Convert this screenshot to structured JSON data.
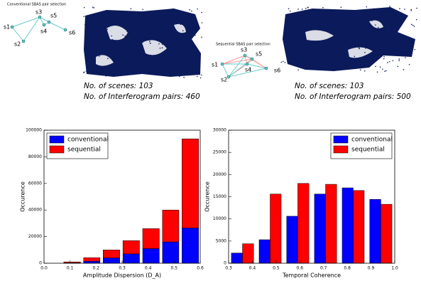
{
  "panels": [
    {
      "diagram_title": "Conventional SBAS pair selection",
      "nodes": [
        "s1",
        "s2",
        "s3",
        "s4",
        "s5",
        "s6"
      ],
      "scenes": "No. of scenes: 103",
      "pairs": "No. of Interferogram pairs:  460"
    },
    {
      "diagram_title": "Sequential SBAS pair selection",
      "nodes": [
        "s1",
        "s2",
        "s3",
        "s4",
        "s5",
        "s6"
      ],
      "scenes": "No. of scenes: 103",
      "pairs": "No. of Interferogram pairs: 500"
    }
  ],
  "chart_data": [
    {
      "type": "histogram",
      "stacked": true,
      "xlabel": "Amplitude Dispersion (D_A)",
      "ylabel": "Occurence",
      "bins": [
        0.07,
        0.146,
        0.221,
        0.297,
        0.373,
        0.449,
        0.524,
        0.6
      ],
      "series": [
        {
          "name": "conventional",
          "color": "#0000ff",
          "values": [
            300,
            1500,
            4000,
            7000,
            11000,
            16000,
            26500
          ]
        },
        {
          "name": "sequential",
          "color": "#ff0000",
          "values": [
            700,
            2700,
            6000,
            10000,
            15000,
            24000,
            67000
          ]
        }
      ],
      "xlim": [
        0,
        0.6
      ],
      "xticks": [
        {
          "value": 0,
          "label": "0.0"
        },
        0.1,
        0.2,
        0.3,
        0.4,
        0.5,
        0.6
      ],
      "ylim": [
        0,
        100000
      ],
      "yticks": [
        0,
        20000,
        40000,
        60000,
        80000,
        100000
      ],
      "legend": "upper left"
    },
    {
      "type": "histogram",
      "stacked": false,
      "xlabel": "Temporal Coherence",
      "ylabel": "Occurence",
      "bins": [
        0.3,
        0.417,
        0.533,
        0.65,
        0.767,
        0.883,
        1.0
      ],
      "series": [
        {
          "name": "conventional",
          "color": "#0000ff",
          "values": [
            2300,
            5300,
            10600,
            15600,
            17000,
            14400
          ]
        },
        {
          "name": "sequential",
          "color": "#ff0000",
          "values": [
            4400,
            15600,
            18000,
            17800,
            16400,
            13300
          ]
        }
      ],
      "xlim": [
        0.3,
        1.0
      ],
      "xticks": [
        0.3,
        0.4,
        0.5,
        0.6,
        0.7,
        0.8,
        0.9,
        {
          "value": 1.0,
          "label": "1.0"
        }
      ],
      "ylim": [
        0,
        30000
      ],
      "yticks": [
        0,
        5000,
        10000,
        15000,
        20000,
        25000,
        30000
      ],
      "legend": "upper right"
    }
  ]
}
